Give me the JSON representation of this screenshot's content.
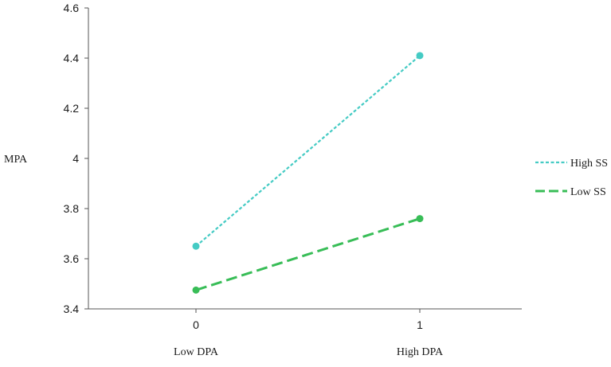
{
  "chart_data": {
    "type": "line",
    "x": [
      0,
      1
    ],
    "x_tick_labels": [
      "0",
      "1"
    ],
    "x_category_labels": [
      "Low DPA",
      "High DPA"
    ],
    "ylabel": "MPA",
    "ylim": [
      3.4,
      4.6
    ],
    "yticks": [
      3.4,
      3.6,
      3.8,
      4,
      4.2,
      4.4,
      4.6
    ],
    "ytick_labels": [
      "3.4",
      "3.6",
      "3.8",
      "4",
      "4.2",
      "4.4",
      "4.6"
    ],
    "series": [
      {
        "name": "High SS",
        "values": [
          3.65,
          4.41
        ],
        "color": "#45cbc4",
        "dash": "short"
      },
      {
        "name": "Low SS",
        "values": [
          3.475,
          3.76
        ],
        "color": "#38bd57",
        "dash": "long"
      }
    ],
    "legend_position": "right",
    "grid": false
  }
}
